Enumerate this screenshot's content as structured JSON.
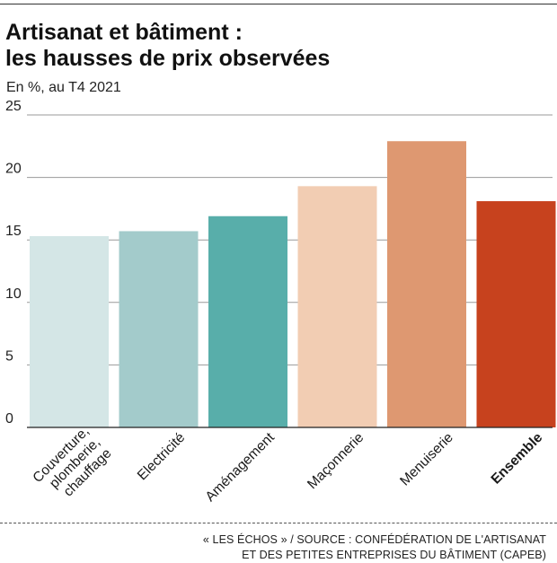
{
  "title_line1": "Artisanat et bâtiment :",
  "title_line2": "les hausses de prix observées",
  "subtitle": "En %, au T4 2021",
  "source_line1": "« LES ÉCHOS » / SOURCE : CONFÉDÉRATION DE L'ARTISANAT",
  "source_line2": "ET DES PETITES ENTREPRISES DU BÂTIMENT (CAPEB)",
  "chart_data": {
    "type": "bar",
    "title": "Artisanat et bâtiment : les hausses de prix observées",
    "subtitle": "En %, au T4 2021",
    "categories": [
      [
        "Couverture,",
        "plomberie,",
        "chauffage"
      ],
      [
        "Electricité"
      ],
      [
        "Aménagement"
      ],
      [
        "Maçonnerie"
      ],
      [
        "Menuiserie"
      ],
      [
        "Ensemble"
      ]
    ],
    "values": [
      15.3,
      15.7,
      16.9,
      19.3,
      22.9,
      18.1
    ],
    "colors": [
      "#d4e6e6",
      "#a3cbcb",
      "#58aeaa",
      "#f2cdb3",
      "#de9871",
      "#c7421e"
    ],
    "bold_category_index": 5,
    "yticks": [
      0,
      5,
      10,
      15,
      20,
      25
    ],
    "ylim": [
      0,
      25
    ],
    "grid": true
  }
}
